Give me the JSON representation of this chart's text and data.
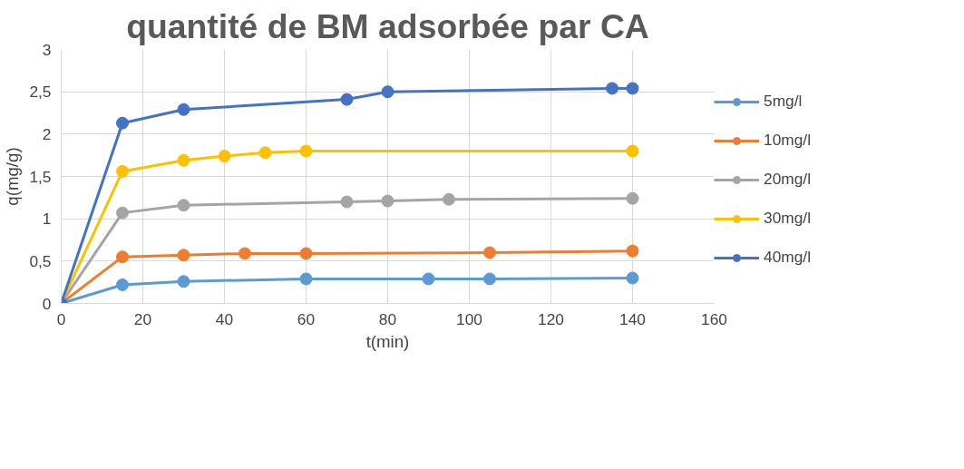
{
  "chart_data": {
    "type": "line",
    "title": "quantité de BM adsorbée par CA",
    "xlabel": "t(min)",
    "ylabel": "q(mg/g)",
    "xlim": [
      0,
      160
    ],
    "xticks": [
      0,
      20,
      40,
      60,
      80,
      100,
      120,
      140,
      160
    ],
    "ylim": [
      0,
      3
    ],
    "yticks": [
      0,
      {
        "value": 0.5,
        "label": "0,5"
      },
      1,
      {
        "value": 1.5,
        "label": "1,5"
      },
      2,
      {
        "value": 2.5,
        "label": "2,5"
      },
      3
    ],
    "grid": true,
    "legend": "right",
    "marker": "circle",
    "line_style": "solid",
    "series": [
      {
        "name": "5mg/l",
        "color": "#5b9bd5",
        "x": [
          0,
          15,
          30,
          60,
          90,
          105,
          140
        ],
        "values": [
          0,
          0.22,
          0.26,
          0.29,
          0.29,
          0.29,
          0.3
        ]
      },
      {
        "name": "10mg/l",
        "color": "#ed7d31",
        "x": [
          0,
          15,
          30,
          45,
          60,
          105,
          140
        ],
        "values": [
          0,
          0.55,
          0.57,
          0.59,
          0.59,
          0.6,
          0.62
        ]
      },
      {
        "name": "20mg/l",
        "color": "#a5a5a5",
        "x": [
          0,
          15,
          30,
          70,
          80,
          95,
          140
        ],
        "values": [
          0,
          1.07,
          1.16,
          1.2,
          1.21,
          1.23,
          1.24
        ]
      },
      {
        "name": "30mg/l",
        "color": "#ffc000",
        "x": [
          0,
          15,
          30,
          40,
          50,
          60,
          140
        ],
        "values": [
          0,
          1.56,
          1.69,
          1.74,
          1.78,
          1.8,
          1.8
        ]
      },
      {
        "name": "40mg/l",
        "color": "#4472c4",
        "x": [
          0,
          15,
          30,
          70,
          80,
          135,
          140
        ],
        "values": [
          0,
          2.13,
          2.29,
          2.41,
          2.5,
          2.54,
          2.54
        ]
      }
    ]
  }
}
